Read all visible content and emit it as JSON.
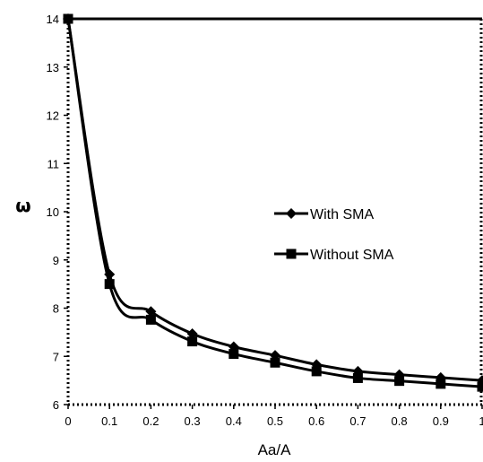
{
  "chart_data": {
    "type": "line",
    "xlabel": "Aa/A",
    "ylabel": "ω",
    "xlim": [
      0,
      1
    ],
    "ylim": [
      6,
      14
    ],
    "x_ticks": [
      "0",
      "0.1",
      "0.2",
      "0.3",
      "0.4",
      "0.5",
      "0.6",
      "0.7",
      "0.8",
      "0.9",
      "1"
    ],
    "y_ticks": [
      "6",
      "7",
      "8",
      "9",
      "10",
      "11",
      "12",
      "13",
      "14"
    ],
    "grid": false,
    "legend_position": "center-right",
    "x": [
      0,
      0.1,
      0.2,
      0.3,
      0.4,
      0.5,
      0.6,
      0.7,
      0.8,
      0.9,
      1.0
    ],
    "series": [
      {
        "name": "With SMA",
        "marker": "diamond",
        "values": [
          14,
          8.7,
          7.93,
          7.47,
          7.2,
          7.02,
          6.83,
          6.69,
          6.62,
          6.56,
          6.5
        ]
      },
      {
        "name": "Without SMA",
        "marker": "square",
        "values": [
          14,
          8.5,
          7.76,
          7.31,
          7.05,
          6.87,
          6.69,
          6.55,
          6.49,
          6.43,
          6.37
        ]
      }
    ]
  }
}
